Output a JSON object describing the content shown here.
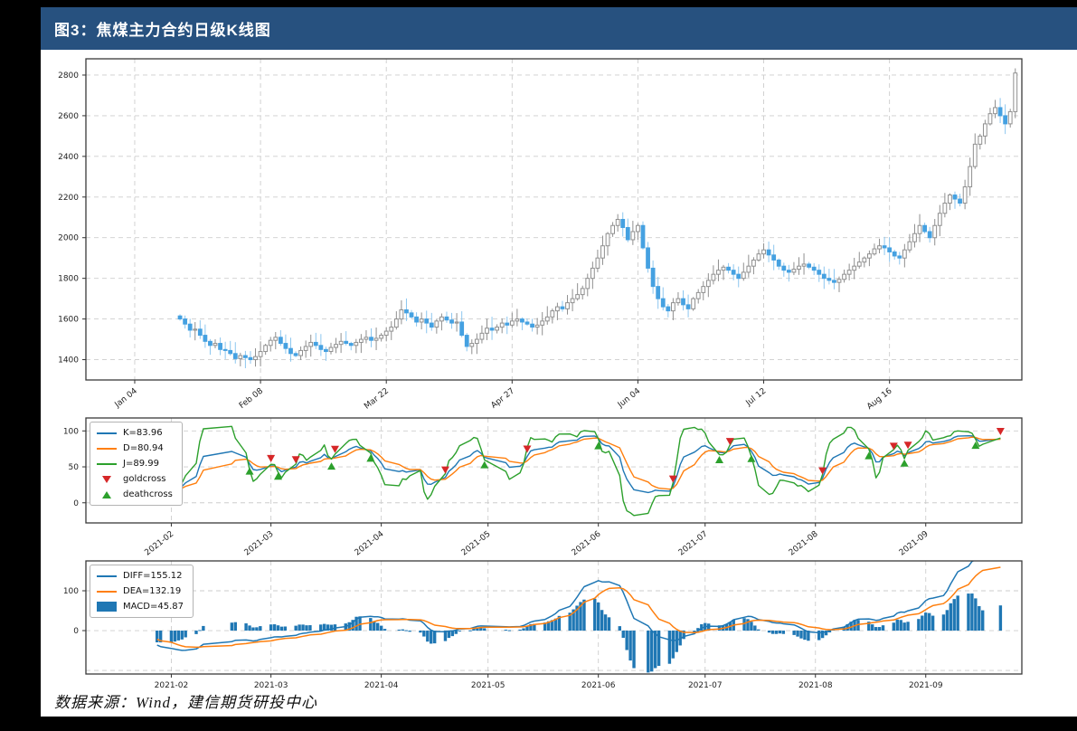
{
  "header": {
    "title": "图3：焦煤主力合约日级K线图",
    "bg_color": "#27517f",
    "text_color": "#ffffff"
  },
  "footer": {
    "source_text": "数据来源：Wind，建信期货研投中心"
  },
  "chart_data": [
    {
      "type": "candlestick",
      "name": "coking-coal-daily-kline",
      "ylim": [
        1300,
        2880
      ],
      "yticks": [
        1400,
        1600,
        1800,
        2000,
        2200,
        2400,
        2600,
        2800
      ],
      "xticks": {
        "labels": [
          "Jan 04",
          "Feb 08",
          "Mar 22",
          "Apr 27",
          "Jun 04",
          "Jul 12",
          "Aug 16"
        ],
        "trading_day_index": [
          0,
          25,
          50,
          75,
          100,
          125,
          150
        ]
      },
      "start_date": "2021-01-04",
      "lead_empty_slots": 9,
      "grid": true,
      "colors": {
        "up_fill": "#ffffff",
        "up_edge": "#8f8f8f",
        "down_fill": "#45a1e1",
        "down_wick": "#8cc6ef"
      },
      "closes": [
        1600,
        1575,
        1545,
        1550,
        1520,
        1490,
        1470,
        1480,
        1450,
        1445,
        1430,
        1405,
        1420,
        1410,
        1400,
        1415,
        1440,
        1470,
        1495,
        1510,
        1480,
        1455,
        1430,
        1420,
        1445,
        1465,
        1485,
        1470,
        1450,
        1440,
        1460,
        1475,
        1490,
        1480,
        1470,
        1485,
        1500,
        1510,
        1495,
        1505,
        1520,
        1540,
        1560,
        1600,
        1645,
        1630,
        1610,
        1585,
        1600,
        1580,
        1560,
        1590,
        1610,
        1595,
        1580,
        1585,
        1520,
        1465,
        1480,
        1500,
        1530,
        1555,
        1545,
        1560,
        1580,
        1570,
        1590,
        1600,
        1585,
        1575,
        1560,
        1570,
        1590,
        1610,
        1640,
        1660,
        1650,
        1680,
        1700,
        1720,
        1750,
        1800,
        1850,
        1900,
        1960,
        2020,
        2060,
        2090,
        2050,
        1990,
        2030,
        2060,
        1950,
        1850,
        1760,
        1700,
        1660,
        1640,
        1680,
        1700,
        1670,
        1650,
        1700,
        1730,
        1760,
        1790,
        1820,
        1840,
        1855,
        1840,
        1820,
        1800,
        1830,
        1860,
        1890,
        1920,
        1940,
        1915,
        1890,
        1860,
        1840,
        1830,
        1845,
        1860,
        1870,
        1855,
        1840,
        1820,
        1800,
        1790,
        1780,
        1795,
        1820,
        1840,
        1860,
        1880,
        1900,
        1920,
        1945,
        1960,
        1950,
        1930,
        1910,
        1900,
        1940,
        1980,
        2020,
        2060,
        2030,
        2000,
        2060,
        2120,
        2170,
        2210,
        2190,
        2170,
        2250,
        2350,
        2460,
        2500,
        2560,
        2610,
        2640,
        2600,
        2560,
        2620,
        2810
      ]
    },
    {
      "type": "line",
      "name": "kdj-stochastic",
      "ylim": [
        -28,
        118
      ],
      "yticks": [
        0,
        50,
        100
      ],
      "xticks": [
        "2021-02",
        "2021-03",
        "2021-04",
        "2021-05",
        "2021-06",
        "2021-07",
        "2021-08",
        "2021-09"
      ],
      "grid": true,
      "legend_position": "upper-left",
      "series": [
        {
          "name": "K",
          "legend": "K=83.96",
          "color": "#1f77b4"
        },
        {
          "name": "D",
          "legend": "D=80.94",
          "color": "#ff7f0e"
        },
        {
          "name": "J",
          "legend": "J=89.99",
          "color": "#2ca02c"
        }
      ],
      "markers": [
        {
          "name": "goldcross",
          "legend": "goldcross",
          "shape": "triangle-down",
          "color": "#d62728"
        },
        {
          "name": "deathcross",
          "legend": "deathcross",
          "shape": "triangle-up",
          "color": "#2ca02c"
        }
      ]
    },
    {
      "type": "macd",
      "name": "macd-indicator",
      "ylim": [
        -109,
        175
      ],
      "yticks": [
        0,
        100
      ],
      "gridlines": [
        -100,
        0,
        100
      ],
      "xticks": [
        "2021-02",
        "2021-03",
        "2021-04",
        "2021-05",
        "2021-06",
        "2021-07",
        "2021-08",
        "2021-09"
      ],
      "legend_position": "upper-left",
      "series": [
        {
          "name": "DIFF",
          "legend": "DIFF=155.12",
          "color": "#1f77b4"
        },
        {
          "name": "DEA",
          "legend": "DEA=132.19",
          "color": "#ff7f0e"
        },
        {
          "name": "MACD",
          "legend": "MACD=45.87",
          "color": "#1f77b4"
        }
      ]
    }
  ]
}
